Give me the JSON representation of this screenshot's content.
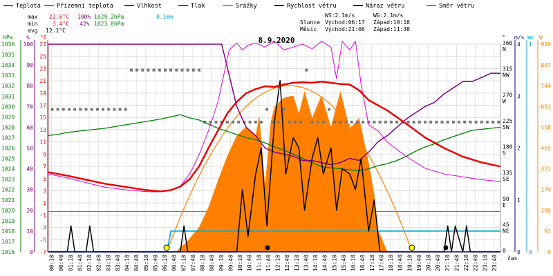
{
  "chart_data": {
    "type": "line",
    "title": "8.9.2020",
    "legend": [
      {
        "label": "Teplota",
        "color": "#ff0000"
      },
      {
        "label": "Přízemní teplota",
        "color": "#ff00ff"
      },
      {
        "label": "Vlhkost",
        "color": "#800080"
      },
      {
        "label": "Tlak",
        "color": "#008000"
      },
      {
        "label": "Srážky",
        "color": "#00c0e0"
      },
      {
        "label": "Rychlost větru",
        "color": "#000000"
      },
      {
        "label": "Náraz větru",
        "color": "#000080"
      },
      {
        "label": "Směr větru",
        "color": "#808080"
      }
    ],
    "stats": {
      "max": {
        "label": "max",
        "temp": "22.6°C",
        "hum": "100%",
        "press": "1029.2hPa",
        "rain": "0.1mm"
      },
      "min": {
        "label": "min",
        "temp": "3.4°C",
        "hum": "42%",
        "press": "1023.8hPa"
      },
      "avg": {
        "label": "avg",
        "temp": "12.1°C"
      }
    },
    "info": {
      "ws": "WS:2.1m/s",
      "wg": "WG:2.1m/s",
      "sun_label": "Slunce",
      "sunrise": "Východ:06:17",
      "sunset": "Západ:19:18",
      "moon_label": "Měsíc",
      "moonrise": "Východ:21:06",
      "moonset": "Západ:11:38"
    },
    "axes_units": {
      "hpa": "hPa",
      "pct": "%",
      "degc": "°C",
      "deg": "°",
      "ms": "m/s",
      "mm": "mm",
      "w": "W",
      "time": "čas"
    },
    "axes": {
      "hpa_ticks": [
        "1036",
        "1035",
        "1034",
        "1033",
        "1032",
        "1031",
        "1030",
        "1029",
        "1028",
        "1027",
        "1026",
        "1025",
        "1024",
        "1023",
        "1022",
        "1021",
        "1020",
        "1019",
        "1018",
        "1017",
        "1016"
      ],
      "pct_ticks": [
        "100",
        "90",
        "80",
        "70",
        "60",
        "50",
        "40",
        "30",
        "20",
        "10",
        "0"
      ],
      "degc_ticks": [
        "27",
        "25",
        "23",
        "21",
        "19",
        "17",
        "15",
        "13",
        "11",
        "9",
        "7",
        "5",
        "3",
        "1",
        "-1",
        "-3",
        "-5",
        "-7"
      ],
      "deg_ticks": [
        {
          "v": "360",
          "d": "N"
        },
        {
          "v": "315",
          "d": "NW"
        },
        {
          "v": "270",
          "d": "W"
        },
        {
          "v": "225",
          "d": "SW"
        },
        {
          "v": "180",
          "d": "S"
        },
        {
          "v": "135",
          "d": "SE"
        },
        {
          "v": "90",
          "d": "E"
        },
        {
          "v": "45",
          "d": "NE"
        },
        {
          "v": "0",
          "d": ""
        }
      ],
      "ms_ticks": [
        "4",
        "3",
        "2",
        "1",
        "0"
      ],
      "mm_ticks": [
        "1",
        "0"
      ],
      "w_ticks": [
        "930",
        "837",
        "744",
        "651",
        "558",
        "465",
        "372",
        "279",
        "186",
        "93",
        "0"
      ],
      "time_ticks": [
        "00:10",
        "00:40",
        "01:10",
        "01:40",
        "02:10",
        "02:40",
        "03:10",
        "03:40",
        "04:10",
        "04:40",
        "05:10",
        "05:40",
        "06:10",
        "06:40",
        "07:10",
        "07:40",
        "08:10",
        "08:40",
        "09:10",
        "09:40",
        "10:10",
        "10:40",
        "11:10",
        "11:40",
        "12:10",
        "12:40",
        "13:10",
        "13:40",
        "14:10",
        "14:40",
        "15:10",
        "15:40",
        "16:10",
        "16:40",
        "17:10",
        "17:40",
        "18:10",
        "18:40",
        "19:10",
        "19:40",
        "20:10",
        "20:40",
        "21:10",
        "21:40",
        "22:10",
        "22:40",
        "23:10",
        "23:40"
      ],
      "ylim": {
        "temp": [
          -7,
          29
        ],
        "press": [
          1016,
          1036
        ],
        "hum": [
          0,
          100
        ],
        "dir": [
          0,
          360
        ],
        "wind": [
          0,
          4
        ],
        "rain": [
          0,
          1
        ],
        "solar": [
          0,
          930
        ]
      }
    },
    "series": [
      {
        "name": "Teplota",
        "unit": "°C",
        "x": [
          0,
          1,
          2,
          3,
          4,
          5,
          5.5,
          6,
          6.5,
          7,
          7.5,
          8,
          8.5,
          9,
          9.5,
          10,
          10.5,
          11,
          11.5,
          12,
          12.5,
          13,
          13.5,
          14,
          14.5,
          15,
          15.5,
          16,
          16.5,
          17,
          18,
          19,
          20,
          21,
          22,
          23,
          24
        ],
        "y": [
          6.8,
          6.2,
          5.5,
          4.8,
          4.3,
          3.8,
          3.6,
          3.5,
          3.7,
          4.3,
          5.6,
          7.8,
          11,
          14,
          17,
          19,
          20.5,
          21.2,
          21.7,
          21.6,
          22.0,
          22.3,
          22.4,
          22.3,
          22.5,
          22.3,
          22.1,
          22,
          21,
          19.3,
          17.5,
          15.2,
          12.8,
          11.0,
          9.5,
          8.5,
          7.8
        ]
      },
      {
        "name": "Přízemní teplota",
        "unit": "°C",
        "x": [
          0,
          1,
          2,
          3,
          4,
          5,
          5.5,
          6,
          6.5,
          7,
          7.5,
          8,
          8.5,
          9,
          9.3,
          9.6,
          10,
          10.3,
          10.6,
          11,
          11.5,
          12,
          12.5,
          13,
          13.5,
          14,
          14.5,
          15,
          15.3,
          15.6,
          16,
          16.3,
          16.6,
          17,
          17.5,
          18,
          19,
          20,
          21,
          22,
          23,
          24
        ],
        "y": [
          6.5,
          5.8,
          5.0,
          4.2,
          3.8,
          3.5,
          3.4,
          3.4,
          3.7,
          4.4,
          6.5,
          9.8,
          14,
          19,
          23.5,
          28,
          29.2,
          28,
          28.8,
          29.2,
          28.5,
          29.5,
          28,
          28.5,
          29,
          28.2,
          29.5,
          28.5,
          23,
          29.5,
          28,
          29.5,
          22,
          15,
          14,
          12,
          9.5,
          7.5,
          6.5,
          6.0,
          5.5,
          5.2
        ]
      },
      {
        "name": "Vlhkost",
        "unit": "%",
        "x": [
          0,
          3,
          5,
          6.5,
          7.5,
          8.3,
          8.8,
          9.2,
          9.6,
          10,
          10.5,
          11,
          11.5,
          12,
          12.5,
          13,
          13.5,
          14,
          14.5,
          15,
          15.5,
          16,
          16.5,
          17,
          17.5,
          18,
          18.5,
          19,
          19.5,
          20,
          20.5,
          21,
          21.5,
          22,
          22.5,
          23,
          23.5,
          24
        ],
        "y": [
          100,
          100,
          100,
          100,
          100,
          100,
          100,
          100,
          85,
          70,
          60,
          56,
          50,
          48,
          47,
          46,
          44,
          44,
          43,
          42,
          43,
          45,
          44,
          48,
          53,
          56,
          60,
          64,
          67,
          70,
          72,
          76,
          79,
          82,
          82,
          84,
          86,
          86
        ]
      },
      {
        "name": "Tlak",
        "unit": "hPa",
        "x": [
          0,
          0.5,
          1,
          2,
          3,
          4,
          5,
          6,
          7,
          7.5,
          8,
          8.5,
          9,
          9.5,
          10,
          10.5,
          11,
          11.5,
          12,
          12.5,
          13,
          13.5,
          14,
          14.5,
          15,
          15.5,
          16,
          16.5,
          17,
          17.5,
          18,
          18.5,
          19,
          19.5,
          20,
          20.5,
          21,
          21.5,
          22,
          22.5,
          23,
          23.5,
          24
        ],
        "y": [
          1027.2,
          1027.3,
          1027.5,
          1027.7,
          1027.9,
          1028.2,
          1028.5,
          1028.8,
          1029.2,
          1028.9,
          1028.7,
          1028.3,
          1027.9,
          1027.6,
          1027.3,
          1027.0,
          1026.8,
          1026.5,
          1026.1,
          1025.8,
          1025.4,
          1025.0,
          1024.6,
          1024.2,
          1024.1,
          1024.0,
          1023.9,
          1023.8,
          1024.0,
          1024.3,
          1024.5,
          1024.8,
          1025.2,
          1025.7,
          1026.1,
          1026.4,
          1026.8,
          1027.1,
          1027.4,
          1027.7,
          1027.8,
          1027.9,
          1028.0
        ]
      },
      {
        "name": "Srážky",
        "unit": "mm",
        "x": [
          0,
          6.3,
          6.5,
          24
        ],
        "y": [
          0,
          0,
          0.1,
          0.1
        ]
      },
      {
        "name": "Rychlost větru",
        "unit": "m/s",
        "x": [
          0,
          1,
          1.2,
          1.4,
          2,
          2.2,
          2.4,
          7,
          7.2,
          7.4,
          10,
          10.3,
          10.6,
          11,
          11.3,
          11.6,
          12,
          12.3,
          12.6,
          13,
          13.3,
          13.6,
          14,
          14.3,
          14.6,
          15,
          15.3,
          15.6,
          16,
          16.3,
          16.6,
          17,
          17.3,
          17.6,
          21,
          21.2,
          21.4,
          21.6,
          22,
          22.2,
          22.4,
          24
        ],
        "y": [
          0,
          0,
          0.5,
          0,
          0,
          0.5,
          0,
          0,
          0.5,
          0,
          0,
          1.2,
          0.3,
          1.5,
          2.0,
          0.5,
          2.5,
          3.3,
          1.5,
          2.2,
          2.0,
          0.8,
          1.8,
          2.2,
          1.5,
          2.0,
          0.8,
          1.6,
          1.5,
          1.2,
          1.8,
          0.4,
          1.0,
          0,
          0,
          0.5,
          0,
          0.5,
          0,
          0.5,
          0,
          0
        ]
      },
      {
        "name": "Náraz větru",
        "unit": "m/s",
        "x": [
          0,
          24
        ],
        "y": [
          0,
          0
        ]
      },
      {
        "name": "Směr větru",
        "unit": "°",
        "x": [
          0.2,
          0.5,
          0.8,
          1.1,
          1.4,
          1.7,
          2,
          2.3,
          2.6,
          2.9,
          3.2,
          3.5,
          3.8,
          4.1,
          4.4,
          4.7,
          5,
          5.3,
          5.6,
          5.9,
          6.2,
          6.5,
          6.8,
          7.1,
          7.4,
          7.7,
          8,
          8.3,
          8.6,
          8.9,
          9.2,
          9.5,
          9.8,
          10.1,
          10.4,
          10.7,
          11,
          11.3,
          11.6,
          11.9,
          12.2,
          12.5,
          12.8,
          13.1,
          13.4,
          13.7,
          14,
          14.3,
          14.6,
          14.9,
          15.2,
          15.5,
          15.8,
          16.1,
          16.4,
          16.7,
          17,
          17.3,
          17.6,
          17.9,
          18.2,
          18.5,
          18.8,
          19.1,
          19.4,
          19.7,
          20,
          20.3,
          20.6,
          20.9,
          21.2,
          21.5,
          21.8,
          22.1,
          22.4,
          22.7,
          23,
          23.3,
          23.6,
          23.9
        ],
        "y": [
          247,
          247,
          247,
          247,
          247,
          247,
          247,
          247,
          247,
          247,
          247,
          247,
          247,
          247,
          315,
          315,
          315,
          315,
          315,
          315,
          315,
          315,
          315,
          315,
          315,
          315,
          315,
          225,
          225,
          225,
          225,
          225,
          225,
          225,
          225,
          225,
          225,
          225,
          247,
          225,
          225,
          247,
          225,
          225,
          225,
          315,
          225,
          225,
          225,
          247,
          225,
          225,
          225,
          225,
          225,
          225,
          225,
          225,
          225,
          225,
          225,
          225,
          225,
          225,
          225,
          225,
          225,
          225,
          225,
          225,
          225,
          225,
          225,
          225,
          225,
          225,
          225,
          225,
          225,
          225
        ]
      },
      {
        "name": "Solar",
        "unit": "W",
        "x": [
          0,
          6.8,
          7,
          7.3,
          7.6,
          8,
          8.5,
          9,
          9.5,
          10,
          10.5,
          11,
          11.2,
          11.5,
          11.8,
          12,
          12.5,
          13,
          13.3,
          13.6,
          14,
          14.5,
          15,
          15.5,
          16,
          16.5,
          17,
          17.3,
          17.5,
          18,
          24
        ],
        "y": [
          0,
          0,
          20,
          40,
          70,
          110,
          200,
          320,
          430,
          520,
          560,
          520,
          610,
          300,
          580,
          650,
          690,
          700,
          620,
          720,
          600,
          700,
          560,
          720,
          550,
          600,
          400,
          260,
          100,
          0,
          0
        ]
      }
    ],
    "solar_max_curve": {
      "x": [
        6.28,
        12.8,
        19.3
      ],
      "y": [
        0,
        744,
        0
      ]
    },
    "sun_events": [
      6.28,
      19.3
    ],
    "moon_events": [
      {
        "t": 11.63,
        "kind": "set"
      },
      {
        "t": 21.1,
        "kind": "rise"
      }
    ]
  }
}
